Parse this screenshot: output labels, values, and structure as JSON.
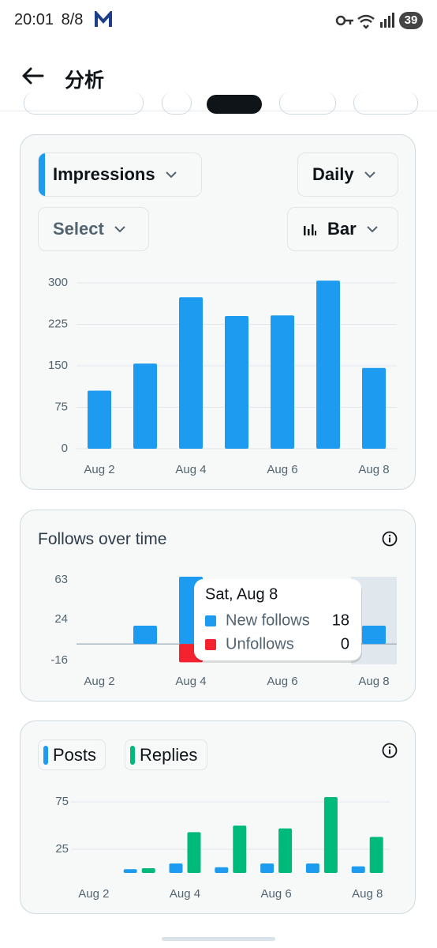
{
  "status_bar": {
    "time": "20:01",
    "date": "8/8",
    "battery": "39"
  },
  "header": {
    "title": "分析"
  },
  "impressions_card": {
    "metric": "Impressions",
    "period": "Daily",
    "compare": "Select",
    "chart_style": "Bar",
    "chart_data": {
      "type": "bar",
      "categories": [
        "Aug 2",
        null,
        "Aug 4",
        null,
        "Aug 6",
        null,
        "Aug 8"
      ],
      "values": [
        105,
        154,
        274,
        240,
        241,
        304,
        146
      ],
      "color": "#1d9bf0",
      "ylim": [
        0,
        310
      ],
      "yticks": [
        0,
        75,
        150,
        225,
        300
      ],
      "grid": true
    }
  },
  "follows_card": {
    "title": "Follows over time",
    "chart_data": {
      "type": "bar",
      "stacked": true,
      "categories": [
        "Aug 2",
        null,
        "Aug 4",
        null,
        "Aug 6",
        null,
        "Aug 8"
      ],
      "series": [
        {
          "name": "New follows",
          "color": "#1d9bf0",
          "values": [
            0,
            18,
            66,
            null,
            null,
            null,
            18
          ]
        },
        {
          "name": "Unfollows",
          "color": "#f4212e",
          "values": [
            0,
            0,
            -18,
            null,
            null,
            null,
            0
          ]
        }
      ],
      "ylim": [
        -20,
        66
      ],
      "yticks": [
        -16,
        24,
        63
      ],
      "grid": false
    },
    "tooltip": {
      "date": "Sat, Aug 8"
    }
  },
  "posts_card": {
    "chart_data": {
      "type": "bar",
      "stacked": false,
      "categories": [
        "Aug 2",
        null,
        "Aug 4",
        null,
        "Aug 6",
        null,
        "Aug 8"
      ],
      "series": [
        {
          "name": "Posts",
          "color": "#1d9bf0",
          "values": [
            0,
            4,
            10,
            6,
            10,
            10,
            7
          ]
        },
        {
          "name": "Replies",
          "color": "#00ba7c",
          "values": [
            0,
            5,
            43,
            50,
            47,
            80,
            38
          ]
        }
      ],
      "ylim": [
        0,
        85
      ],
      "yticks": [
        25,
        75
      ],
      "grid": true
    }
  }
}
